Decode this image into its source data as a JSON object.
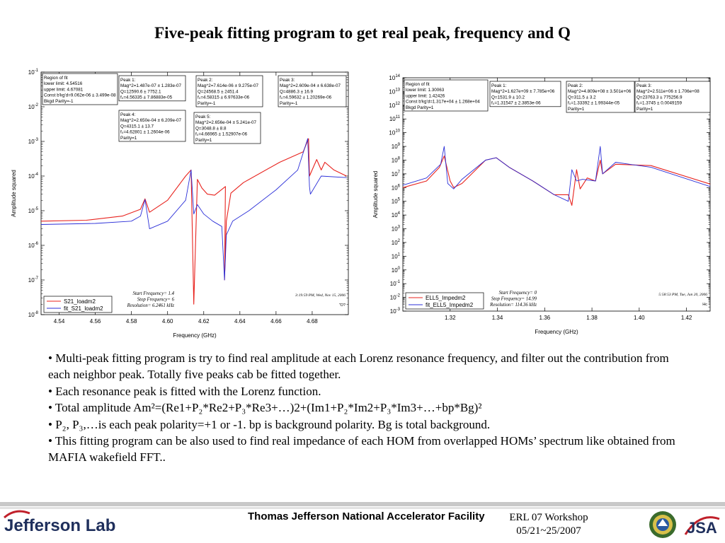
{
  "slide": {
    "title": "Five-peak fitting program to get real peak, frequency and Q",
    "bullets": [
      "• Multi-peak fitting program is try to find real amplitude at each Lorenz resonance frequency, and filter out the contribution from each neighbor peak. Totally five peaks cab be fitted together.",
      "• Each resonance peak is fitted with the Lorenz function.",
      "• Total amplitude Am²=(Re1+P₂*Re2+P₃*Re3+…)2+(Im1+P₂*Im2+P₃*Im3+…+bp*Bg)²",
      "• P₂, P₃,…is each peak polarity=+1 or -1. bp is background polarity. Bg is total background.",
      "• This fitting program can be also used to find real impedance of each HOM from overlapped HOMs’ spectrum like obtained from MAFIA wakefield FFT.."
    ],
    "footer": {
      "lab_name": "Jefferson Lab",
      "facility": "Thomas Jefferson National Accelerator Facility",
      "workshop": "ERL 07 Workshop",
      "dates": "05/21~25/2007"
    },
    "logos": [
      "doe-seal-logo",
      "jsa-logo"
    ]
  },
  "chart_data": [
    {
      "type": "line",
      "xlabel": "Frequency (GHz)",
      "ylabel": "Amplitude squared",
      "yscale": "log",
      "xlim": [
        4.53,
        4.7
      ],
      "ylim": [
        1e-08,
        0.1
      ],
      "xticks": [
        "4.54",
        "4.56",
        "4.58",
        "4.60",
        "4.62",
        "4.64",
        "4.66",
        "4.68"
      ],
      "yticks": [
        "10^-8",
        "10^-7",
        "10^-6",
        "10^-5",
        "10^-4",
        "10^-3",
        "10^-2",
        "10^-1"
      ],
      "grid": false,
      "legend_position": "bottom-left",
      "series": [
        {
          "name": "S21_loadm2",
          "color": "#e8231e",
          "x": [
            4.53,
            4.555,
            4.575,
            4.585,
            4.5875,
            4.59,
            4.6,
            4.61,
            4.613,
            4.6145,
            4.6165,
            4.619,
            4.622,
            4.626,
            4.632,
            4.6315,
            4.6325,
            4.635,
            4.642,
            4.662,
            4.675,
            4.678,
            4.6785,
            4.6825,
            4.685,
            4.687,
            4.692,
            4.699
          ],
          "y": [
            5e-06,
            5.3e-06,
            7e-06,
            1.1e-05,
            2.2e-05,
            9e-06,
            2e-05,
            0.0001,
            0.00015,
            2e-08,
            8e-05,
            4.5e-05,
            3e-05,
            2.8e-05,
            5e-05,
            1e-07,
            5e-06,
            3.2e-05,
            6.5e-05,
            0.00025,
            0.0005,
            0.0012,
            0.0001,
            0.0003,
            0.00015,
            0.00025,
            0.00015,
            0.0001
          ]
        },
        {
          "name": "fit_S21_loadm2",
          "color": "#2b2fd8",
          "x": [
            4.53,
            4.56,
            4.58,
            4.585,
            4.5875,
            4.59,
            4.6,
            4.61,
            4.613,
            4.6145,
            4.6165,
            4.62,
            4.625,
            4.63,
            4.6315,
            4.6325,
            4.636,
            4.645,
            4.66,
            4.672,
            4.6775,
            4.6785,
            4.679,
            4.685,
            4.699
          ],
          "y": [
            4e-06,
            4.3e-06,
            5e-06,
            7e-06,
            2.1e-05,
            3e-06,
            5e-06,
            2e-05,
            0.00015,
            8e-06,
            1.5e-05,
            8e-06,
            5e-06,
            3.5e-06,
            1e-07,
            2e-06,
            5e-06,
            1e-05,
            4e-05,
            0.00015,
            0.0012,
            5e-05,
            3e-05,
            0.0001,
            9e-05
          ]
        }
      ],
      "annotations": {
        "fit_box": [
          "Region of fit",
          "lower limit: 4.54516",
          "upper limit: 4.67081",
          "Const b'kg'd=9.062e-06 ± 3.499e-08",
          "Bkgd Parity=-1"
        ],
        "peaks": [
          [
            "Peak 1:",
            "Mag^2=1.487e-07 ± 1.283e-07",
            "Q=12590.6 ± 7752.1",
            "f₀=4.56335 ± 7.86883e-05"
          ],
          [
            "Peak 2:",
            "Mag^2=7.614e-06 ± 9.275e-07",
            "Q=24568.5 ± 2451.4",
            "f₀=4.58315 ± 6.97633e-06",
            "Parity=-1"
          ],
          [
            "Peak 3:",
            "Mag^2=2.609e-04 ± 6.638e-07",
            "Q=4886.3 ± 16.9",
            "f₀=4.59632 ± 1.20269e-06",
            "Parity=-1"
          ],
          [
            "Peak 4:",
            "Mag^2=2.650e-04 ± 6.209e-07",
            "Q=4315.1 ± 13.7",
            "f₀=4.62801 ± 1.2604e-06",
            "Parity=1"
          ],
          [
            "Peak 5:",
            "Mag^2=2.656e-04 ± 5.241e-07",
            "Q=3048.8 ± 8.8",
            "f₀=4.66965 ± 1.52907e-06",
            "Parity=1"
          ]
        ],
        "settings": [
          "Start Frequency= 1.4",
          "Stop Frequency= 6",
          "Resolution= 6.2461 kHz"
        ],
        "timestamp": "3:19:59 PM, Wed, Nov 15, 2006",
        "corner_label": "\"O?"
      }
    },
    {
      "type": "line",
      "xlabel": "Frequency (GHz)",
      "ylabel": "Amplitude squared",
      "yscale": "log",
      "xlim": [
        1.3,
        1.43
      ],
      "ylim": [
        0.001,
        100000000000000.0
      ],
      "xticks": [
        "1.32",
        "1.34",
        "1.36",
        "1.38",
        "1.40",
        "1.42"
      ],
      "yticks": [
        "10^-3",
        "10^-2",
        "10^-1",
        "10^0",
        "10^1",
        "10^2",
        "10^3",
        "10^4",
        "10^5",
        "10^6",
        "10^7",
        "10^8",
        "10^9",
        "10^10",
        "10^11",
        "10^12",
        "10^13",
        "10^14"
      ],
      "grid": false,
      "legend_position": "bottom-left",
      "series": [
        {
          "name": "ELL5_Impedm2",
          "color": "#e8231e",
          "x": [
            1.3,
            1.31,
            1.3155,
            1.3175,
            1.32,
            1.3215,
            1.325,
            1.335,
            1.3395,
            1.345,
            1.355,
            1.364,
            1.37,
            1.3715,
            1.3735,
            1.375,
            1.378,
            1.3815,
            1.3835,
            1.3845,
            1.39,
            1.405,
            1.43
          ],
          "y": [
            1000000.0,
            3000000.0,
            30000000.0,
            200000000.0,
            3000000.0,
            1000000.0,
            2000000.0,
            100000000.0,
            150000000.0,
            30000000.0,
            3000000.0,
            300000.0,
            300000.0,
            50000.0,
            20000000.0,
            800000.0,
            5000000.0,
            3000000.0,
            100000000.0,
            10000000.0,
            50000000.0,
            40000000.0,
            1800000.0
          ]
        },
        {
          "name": "fit_ELL5_Impedm2",
          "color": "#2b2fd8",
          "x": [
            1.3,
            1.31,
            1.316,
            1.3175,
            1.319,
            1.3215,
            1.325,
            1.335,
            1.3395,
            1.345,
            1.355,
            1.364,
            1.37,
            1.3715,
            1.3735,
            1.376,
            1.3815,
            1.3835,
            1.3845,
            1.39,
            1.405,
            1.43
          ],
          "y": [
            1500000.0,
            5000000.0,
            50000000.0,
            1000000000.0,
            2000000.0,
            800000.0,
            4000000.0,
            100000000.0,
            150000000.0,
            30000000.0,
            3000000.0,
            300000.0,
            100000.0,
            20000000.0,
            3000000.0,
            4000000.0,
            3000000.0,
            1000000000.0,
            10000000.0,
            70000000.0,
            30000000.0,
            1200000.0
          ]
        }
      ],
      "annotations": {
        "fit_box": [
          "Region of fit",
          "lower limit: 1.30063",
          "upper limit: 1.42426",
          "Const b'kg'd=1.317e+04 ± 1.268e+04",
          "Bkgd Parity=1"
        ],
        "peaks": [
          [
            "Peak 1:",
            "Mag^2=1.627e+09 ± 7.785e+06",
            "Q=1531.9 ± 10.2",
            "f₀=1.31547 ± 2.3853e-06"
          ],
          [
            "Peak 2:",
            "Mag^2=4.809e+08 ± 3.501e+06",
            "Q=311.5 ± 3.2",
            "f₀=1.33392 ± 1.99344e-05",
            "Parity=1"
          ],
          [
            "Peak 3:",
            "Mag^2=2.511e+06 ± 1.706e+08",
            "Q=23763.3 ± 775256.9",
            "f₀=1.3745 ± 0.0049159",
            "Parity=1"
          ]
        ],
        "settings": [
          "Start Frequency= 0",
          "Stop Frequency= 14.99",
          "Resolution= 114.36 kHz"
        ],
        "timestamp": "5:58:53 PM, Tue, Jun 20, 2006",
        "corner_label": "Hc"
      }
    }
  ]
}
